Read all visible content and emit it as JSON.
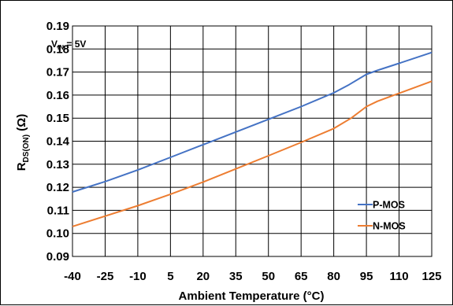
{
  "chart_data": {
    "type": "line",
    "xlabel": "Ambient Temperature (°C)",
    "ylabel_main": "R",
    "ylabel_sub": "DS(ON)",
    "ylabel_unit": " (Ω)",
    "x_ticks": [
      "-40",
      "-25",
      "-10",
      "5",
      "20",
      "35",
      "50",
      "65",
      "80",
      "95",
      "110",
      "125"
    ],
    "y_ticks": [
      "0.09",
      "0.10",
      "0.11",
      "0.12",
      "0.13",
      "0.14",
      "0.15",
      "0.16",
      "0.17",
      "0.18",
      "0.19"
    ],
    "xlim": [
      -40,
      125
    ],
    "ylim": [
      0.09,
      0.19
    ],
    "grid": true,
    "legend_position": "bottom-right",
    "annotation": {
      "main": "V",
      "sub": "IN",
      "rest": " = 5V"
    },
    "series": [
      {
        "name": "P-MOS",
        "color": "#4472C4",
        "points": [
          [
            -40,
            0.118
          ],
          [
            -25,
            0.1225
          ],
          [
            -10,
            0.1275
          ],
          [
            5,
            0.133
          ],
          [
            20,
            0.1385
          ],
          [
            35,
            0.144
          ],
          [
            50,
            0.1495
          ],
          [
            65,
            0.155
          ],
          [
            80,
            0.161
          ],
          [
            87,
            0.1645
          ],
          [
            95,
            0.169
          ],
          [
            100,
            0.1707
          ],
          [
            110,
            0.1738
          ],
          [
            125,
            0.1785
          ]
        ]
      },
      {
        "name": "N-MOS",
        "color": "#ED7D31",
        "points": [
          [
            -40,
            0.103
          ],
          [
            -25,
            0.1075
          ],
          [
            -10,
            0.112
          ],
          [
            5,
            0.117
          ],
          [
            20,
            0.1223
          ],
          [
            35,
            0.128
          ],
          [
            50,
            0.1337
          ],
          [
            65,
            0.1395
          ],
          [
            80,
            0.1455
          ],
          [
            88,
            0.15
          ],
          [
            95,
            0.155
          ],
          [
            100,
            0.1573
          ],
          [
            110,
            0.1608
          ],
          [
            125,
            0.166
          ]
        ]
      }
    ]
  }
}
